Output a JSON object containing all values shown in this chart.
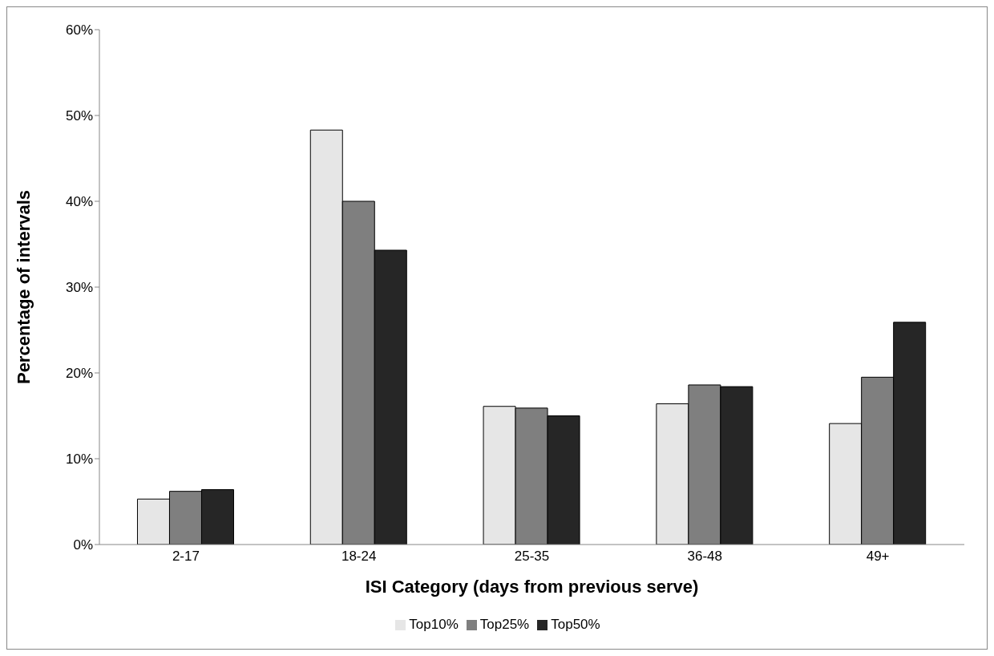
{
  "chart_data": {
    "type": "bar",
    "xlabel": "ISI Category (days from previous serve)",
    "ylabel": "Percentage of intervals",
    "categories": [
      "2-17",
      "18-24",
      "25-35",
      "36-48",
      "49+"
    ],
    "series": [
      {
        "name": "Top10%",
        "color": "#e6e6e6",
        "values": [
          5.3,
          48.3,
          16.1,
          16.4,
          14.1
        ]
      },
      {
        "name": "Top25%",
        "color": "#7f7f7f",
        "values": [
          6.2,
          40.0,
          15.9,
          18.6,
          19.5
        ]
      },
      {
        "name": "Top50%",
        "color": "#262626",
        "values": [
          6.4,
          34.3,
          15.0,
          18.4,
          25.9
        ]
      }
    ],
    "ylim": [
      0,
      60
    ],
    "yticks": [
      {
        "value": 0,
        "label": "0%"
      },
      {
        "value": 10,
        "label": "10%"
      },
      {
        "value": 20,
        "label": "20%"
      },
      {
        "value": 30,
        "label": "30%"
      },
      {
        "value": 40,
        "label": "40%"
      },
      {
        "value": 50,
        "label": "50%"
      },
      {
        "value": 60,
        "label": "60%"
      }
    ],
    "grid": false,
    "legend": "bottom"
  }
}
